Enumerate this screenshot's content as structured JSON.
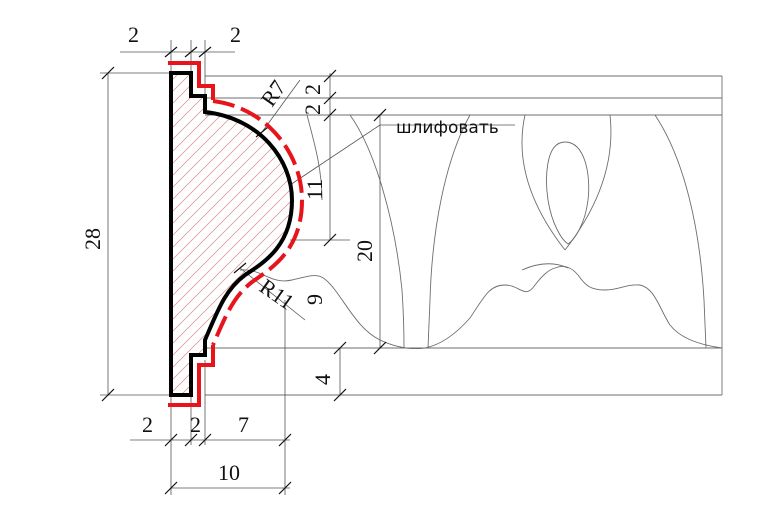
{
  "dimensions": {
    "top_left": "2",
    "top_right": "2",
    "height_total": "28",
    "radius_top": "R7",
    "step_a": "2",
    "step_b": "2",
    "curve_height": "11",
    "carving_height": "20",
    "radius_bottom": "R11",
    "lower_offset": "9",
    "bottom_band": "4",
    "bottom_1": "2",
    "bottom_2": "2",
    "bottom_3": "7",
    "width_total": "10"
  },
  "annotation": {
    "note": "шлифовать"
  },
  "colors": {
    "profile": "#000000",
    "sanding_line": "#e8141c",
    "hatch": "#d98b8b"
  }
}
